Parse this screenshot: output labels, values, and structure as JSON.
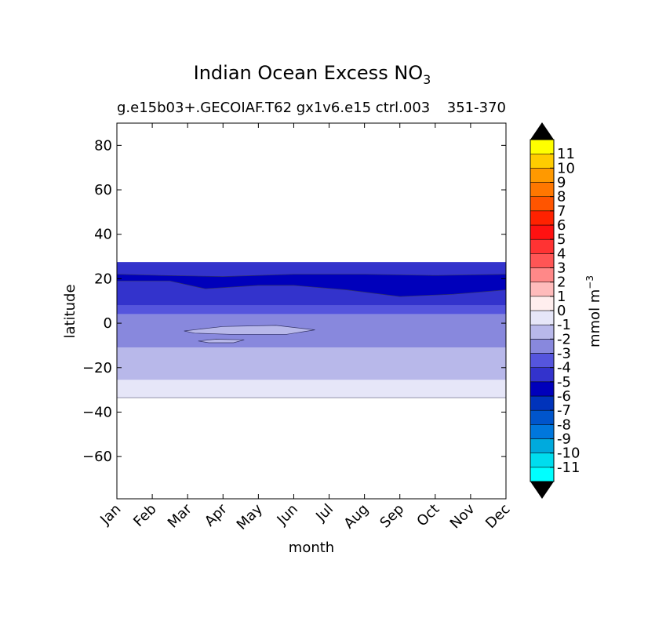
{
  "chart_data": {
    "type": "contour",
    "title": "Indian Ocean Excess NO",
    "title_subscript": "3",
    "subtitle": "g.e15b03+.GECOIAF.T62 gx1v6.e15 ctrl.003",
    "subtitle_right": "351-370",
    "xlabel": "month",
    "ylabel": "latitude",
    "x_categories": [
      "Jan",
      "Feb",
      "Mar",
      "Apr",
      "May",
      "Jun",
      "Jul",
      "Aug",
      "Sep",
      "Oct",
      "Nov",
      "Dec"
    ],
    "xlim": [
      0,
      11
    ],
    "ylim": [
      -79,
      90
    ],
    "y_ticks": [
      80,
      60,
      40,
      20,
      0,
      -20,
      -40,
      -60
    ],
    "y_tick_labels": [
      "80",
      "60",
      "40",
      "20",
      "0",
      "−20",
      "−40",
      "−60"
    ],
    "colorbar": {
      "label": "mmol m",
      "label_sup": "−3",
      "levels": [
        -12,
        -11,
        -10,
        -9,
        -8,
        -7,
        -6,
        -5,
        -4,
        -3,
        -2,
        -1,
        0,
        1,
        2,
        3,
        4,
        5,
        6,
        7,
        8,
        9,
        10,
        11,
        12
      ],
      "tick_labels": [
        "11",
        "10",
        "9",
        "8",
        "7",
        "6",
        "5",
        "4",
        "3",
        "2",
        "1",
        "0",
        "-1",
        "-2",
        "-3",
        "-4",
        "-5",
        "-6",
        "-7",
        "-8",
        "-9",
        "-10",
        "-11"
      ],
      "colors": [
        "#00ffff",
        "#00ddee",
        "#00aadd",
        "#0077dd",
        "#0055cc",
        "#0033bb",
        "#0000bb",
        "#3333cc",
        "#5555dd",
        "#8888dd",
        "#b8b8ea",
        "#e6e6f8",
        "#ffeeee",
        "#ffbbbb",
        "#ff8888",
        "#ff5555",
        "#ff3333",
        "#ff1111",
        "#ff2200",
        "#ff5500",
        "#ff7700",
        "#ff9900",
        "#ffcc00",
        "#ffff00"
      ],
      "extend_color": "#000000"
    },
    "bands": [
      {
        "lat_min": 26.5,
        "lat_max": 27.5,
        "color": "#3333cc"
      },
      {
        "lat_min": 8,
        "lat_max": 26.5,
        "color": "#3333cc"
      },
      {
        "lat_min": 4,
        "lat_max": 8,
        "color": "#5555dd"
      },
      {
        "lat_min": -11,
        "lat_max": 4,
        "color": "#8888dd"
      },
      {
        "lat_min": -25.5,
        "lat_max": -11,
        "color": "#b8b8ea"
      },
      {
        "lat_min": -33.5,
        "lat_max": -25.5,
        "color": "#e6e6f8"
      }
    ],
    "data_extent": {
      "lat_min": -33.5,
      "lat_max": 27.5
    }
  }
}
